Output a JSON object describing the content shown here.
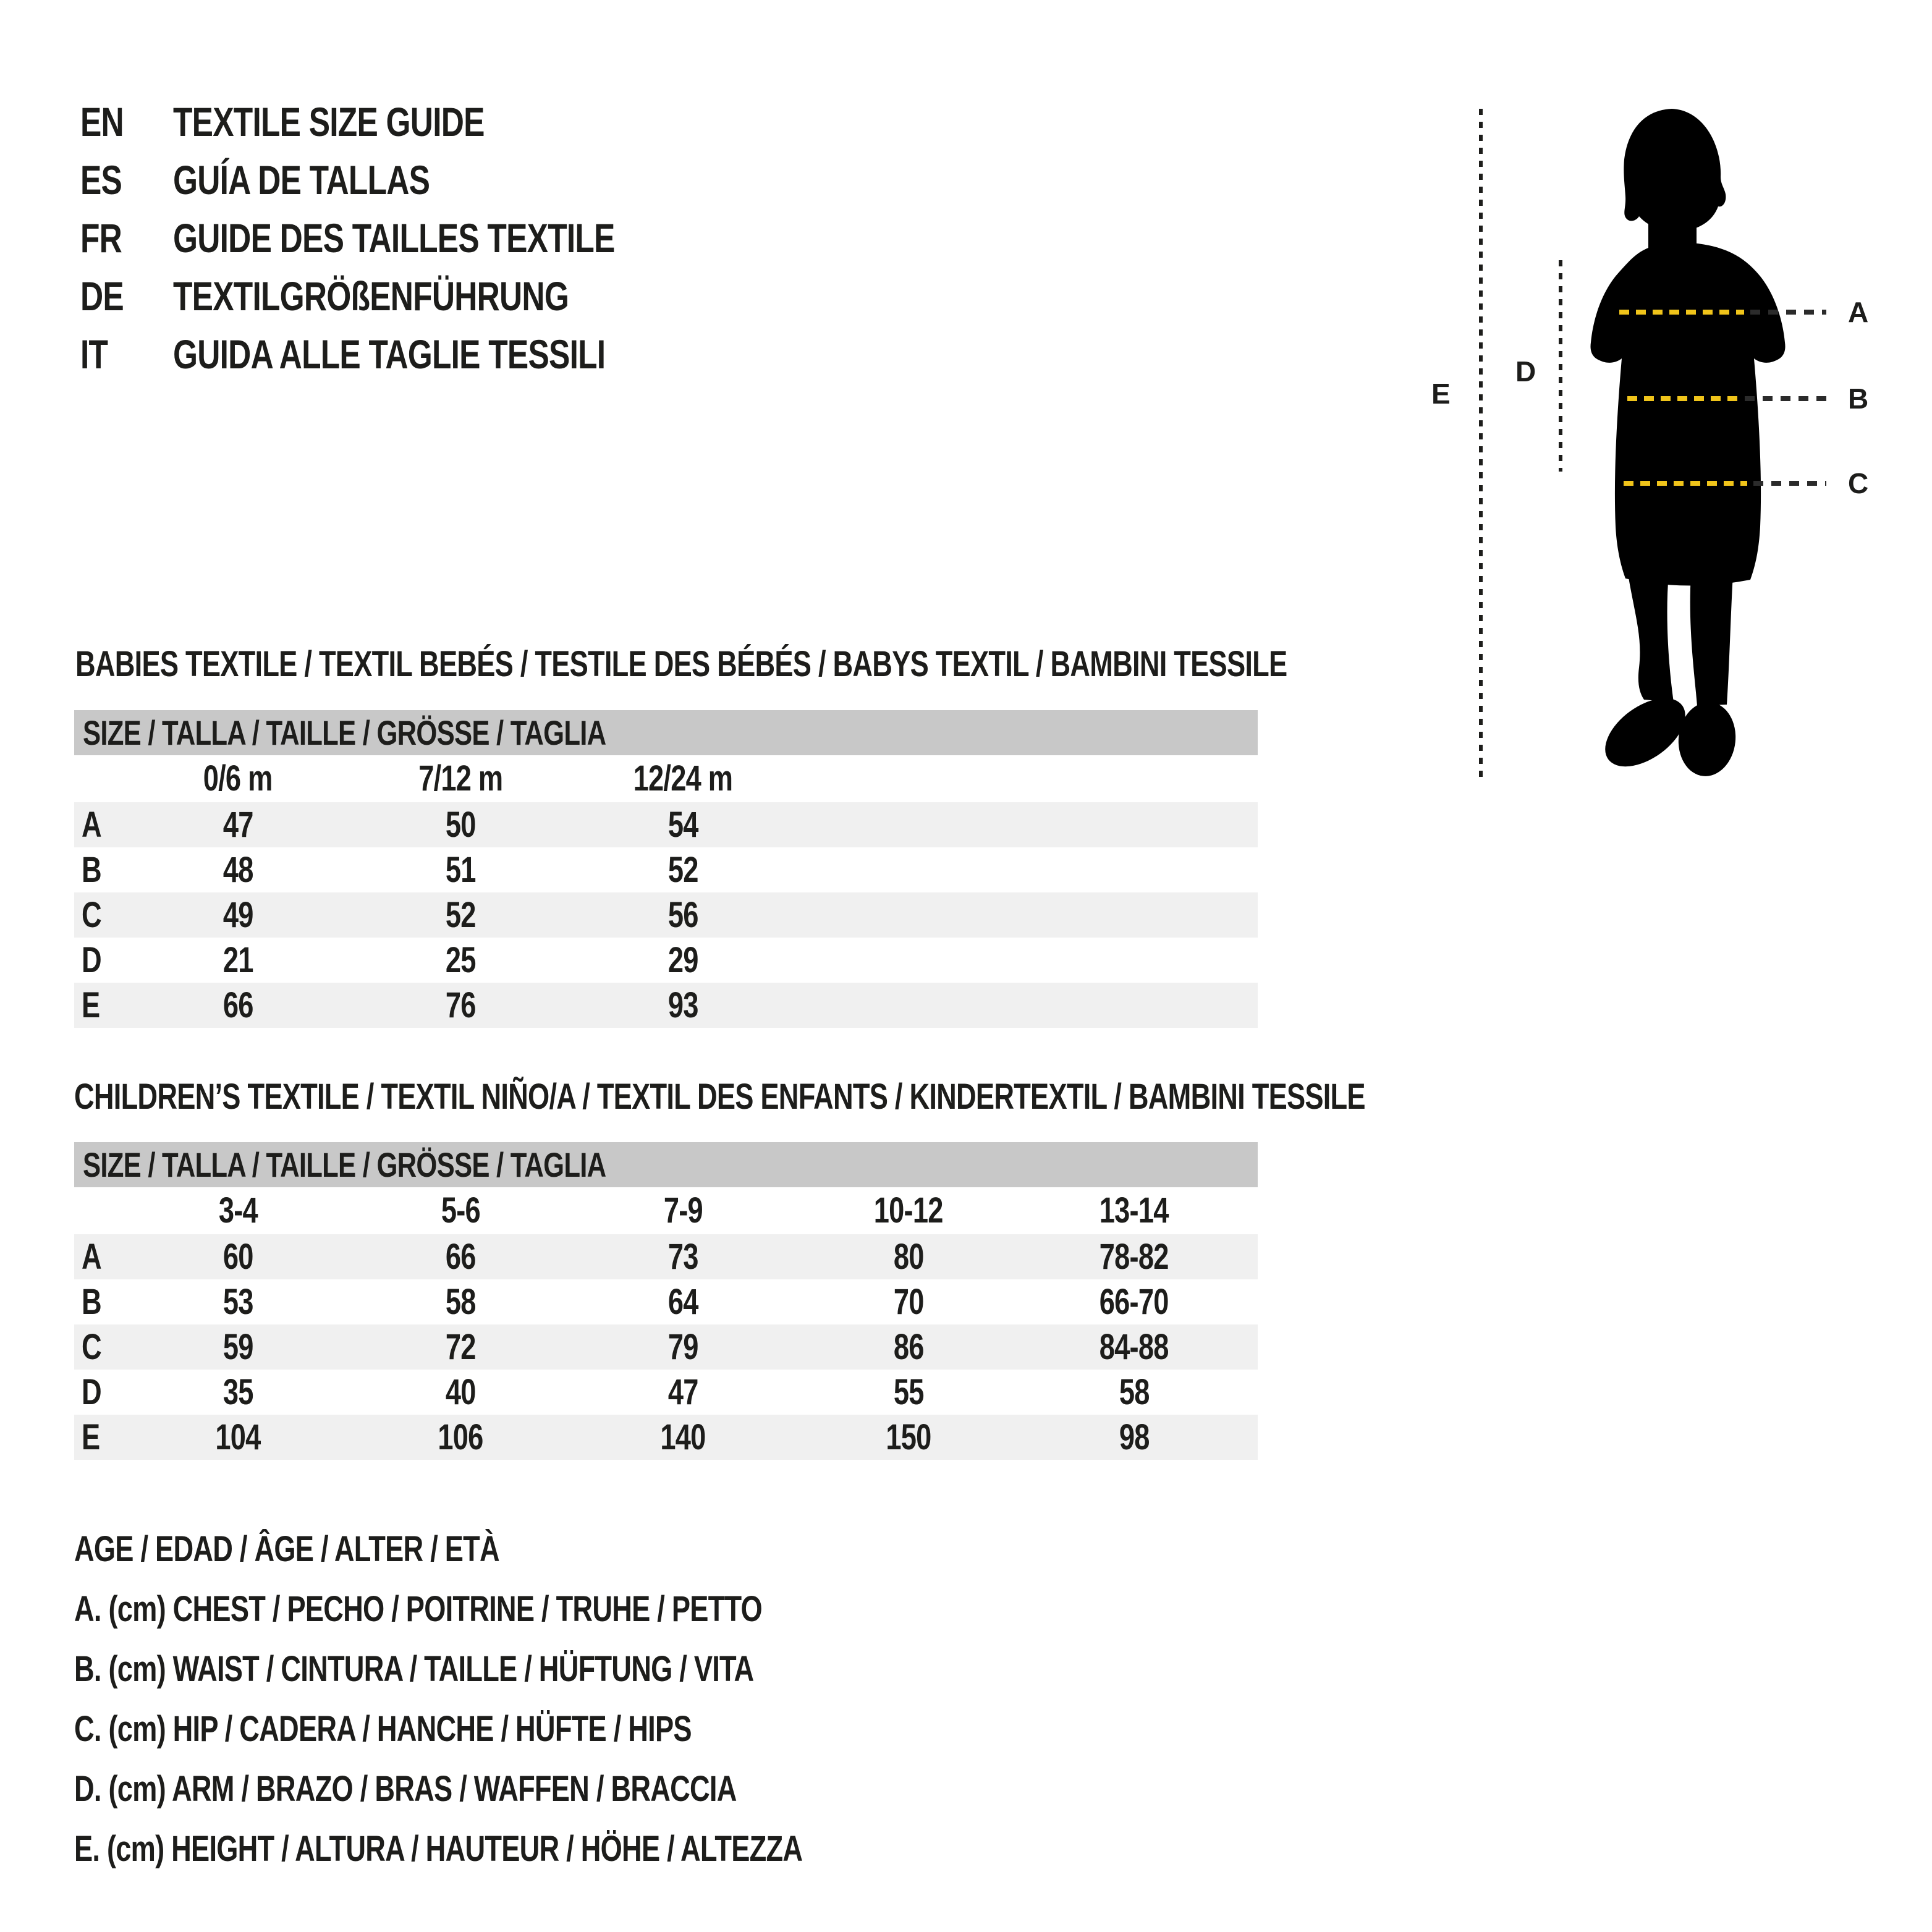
{
  "page": {
    "background": "#ffffff",
    "text_color": "#1d1d1b",
    "header_bar_color": "#c8c8c8",
    "row_stripe_color": "#f0f0f0",
    "measure_line_yellow": "#f0c41a",
    "measure_line_dark": "#2b2b2b",
    "silhouette_color": "#000000"
  },
  "languages": {
    "items": [
      {
        "code": "EN",
        "title": "TEXTILE SIZE GUIDE"
      },
      {
        "code": "ES",
        "title": "GUÍA DE TALLAS"
      },
      {
        "code": "FR",
        "title": "GUIDE DES TAILLES TEXTILE"
      },
      {
        "code": "DE",
        "title": "TEXTILGRÖßENFÜHRUNG"
      },
      {
        "code": "IT",
        "title": "GUIDA ALLE TAGLIE TESSILI"
      }
    ]
  },
  "figure": {
    "labels": {
      "chest": "A",
      "waist": "B",
      "hip": "C",
      "arm": "D",
      "height": "E"
    }
  },
  "babies_table": {
    "heading": "BABIES TEXTILE / TEXTIL BEBÉS / TESTILE DES BÉBÉS / BABYS TEXTIL / BAMBINI TESSILE",
    "size_header": "SIZE / TALLA / TAILLE / GRÖSSE / TAGLIA",
    "columns": [
      "0/6 m",
      "7/12 m",
      "12/24 m"
    ],
    "rows": [
      {
        "label": "A",
        "values": [
          "47",
          "50",
          "54"
        ]
      },
      {
        "label": "B",
        "values": [
          "48",
          "51",
          "52"
        ]
      },
      {
        "label": "C",
        "values": [
          "49",
          "52",
          "56"
        ]
      },
      {
        "label": "D",
        "values": [
          "21",
          "25",
          "29"
        ]
      },
      {
        "label": "E",
        "values": [
          "66",
          "76",
          "93"
        ]
      }
    ]
  },
  "children_table": {
    "heading": "CHILDREN’S TEXTILE / TEXTIL NIÑO/A / TEXTIL DES ENFANTS / KINDERTEXTIL / BAMBINI TESSILE",
    "size_header": "SIZE / TALLA / TAILLE / GRÖSSE / TAGLIA",
    "columns": [
      "3-4",
      "5-6",
      "7-9",
      "10-12",
      "13-14"
    ],
    "rows": [
      {
        "label": "A",
        "values": [
          "60",
          "66",
          "73",
          "80",
          "78-82"
        ]
      },
      {
        "label": "B",
        "values": [
          "53",
          "58",
          "64",
          "70",
          "66-70"
        ]
      },
      {
        "label": "C",
        "values": [
          "59",
          "72",
          "79",
          "86",
          "84-88"
        ]
      },
      {
        "label": "D",
        "values": [
          "35",
          "40",
          "47",
          "55",
          "58"
        ]
      },
      {
        "label": "E",
        "values": [
          "104",
          "106",
          "140",
          "150",
          "98"
        ]
      }
    ]
  },
  "legend": {
    "title": "AGE / EDAD / ÂGE / ALTER / ETÀ",
    "items": [
      "A. (cm) CHEST / PECHO / POITRINE / TRUHE / PETTO",
      "B. (cm) WAIST / CINTURA / TAILLE / HÜFTUNG / VITA",
      "C. (cm) HIP / CADERA / HANCHE / HÜFTE / HIPS",
      "D. (cm) ARM / BRAZO / BRAS / WAFFEN / BRACCIA",
      "E. (cm) HEIGHT / ALTURA / HAUTEUR / HÖHE / ALTEZZA"
    ]
  }
}
